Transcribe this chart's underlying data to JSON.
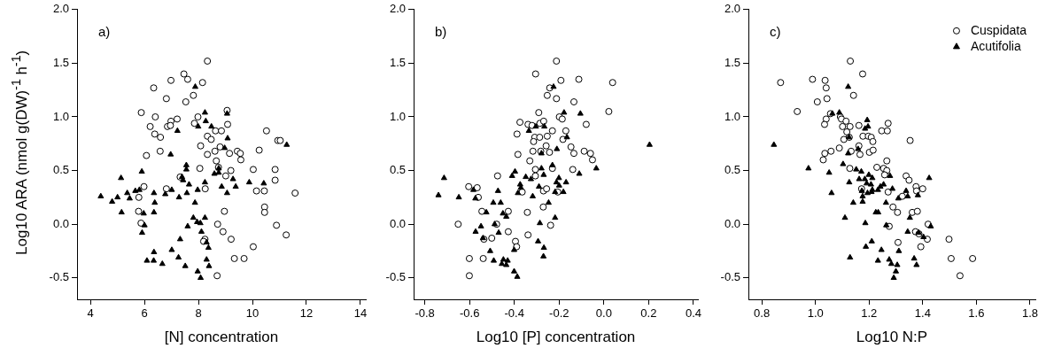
{
  "chart_data": [
    {
      "type": "scatter",
      "annotations": [
        "a)"
      ],
      "xlabel": "[N] concentration",
      "ylabel": "Log10 ARA (nmol g(DW)$^{-1}$ h$^{-1}$)",
      "xlim": [
        3.5,
        14.2
      ],
      "ylim": [
        -0.7,
        2.0
      ],
      "xticks": [
        4,
        6,
        8,
        10,
        12,
        14
      ],
      "yticks": [
        {
          "value": -0.5,
          "label": "-0.5"
        },
        {
          "value": 0,
          "label": "0.0"
        },
        {
          "value": 0.5,
          "label": "0.5"
        },
        {
          "value": 1,
          "label": "1.0"
        },
        {
          "value": 1.5,
          "label": "1.5"
        },
        {
          "value": 2,
          "label": "2.0"
        }
      ],
      "grid": false,
      "legend": false,
      "series": [
        {
          "color": "#000000",
          "marker": "circle",
          "x": [
            8.33,
            7.46,
            7.6,
            6.98,
            6.34,
            8.15,
            6.81,
            7.81,
            7.53,
            5.88,
            6.4,
            9.06,
            7.98,
            6.21,
            6.98,
            7.21,
            6.85,
            6.96,
            7.85,
            6.38,
            6.59,
            9.08,
            8.63,
            8.85,
            8.33,
            8.47,
            10.52,
            8.08,
            6.58,
            6.07,
            8.33,
            8.61,
            8.8,
            9.15,
            9.44,
            9.55,
            9.57,
            10.25,
            10.94,
            11.03,
            8.66,
            8.74,
            8.05,
            9.2,
            9.01,
            10.03,
            10.84,
            10.84,
            7.32,
            5.98,
            6.81,
            8.25,
            5.79,
            10.15,
            10.44,
            11.58,
            10.45,
            10.45,
            5.78,
            8.96,
            5.87,
            8.71,
            8.91,
            10.89,
            11.25,
            9.21,
            8.24,
            8.19,
            10.03,
            9.33,
            9.69,
            8.69
          ],
          "values": [
            1.52,
            1.4,
            1.35,
            1.34,
            1.27,
            1.32,
            1.17,
            1.2,
            1.14,
            1.04,
            1.0,
            1.06,
            1.0,
            0.91,
            0.96,
            0.98,
            0.91,
            0.92,
            0.94,
            0.84,
            0.81,
            0.93,
            0.87,
            0.87,
            0.82,
            0.79,
            0.87,
            0.73,
            0.68,
            0.64,
            0.65,
            0.68,
            0.72,
            0.66,
            0.68,
            0.66,
            0.6,
            0.69,
            0.78,
            0.78,
            0.59,
            0.53,
            0.52,
            0.5,
            0.45,
            0.51,
            0.51,
            0.41,
            0.44,
            0.35,
            0.33,
            0.33,
            0.25,
            0.31,
            0.31,
            0.29,
            0.16,
            0.11,
            0.12,
            0.12,
            0.01,
            0.0,
            -0.07,
            -0.01,
            -0.1,
            -0.14,
            -0.14,
            -0.16,
            -0.21,
            -0.32,
            -0.32,
            -0.48
          ]
        },
        {
          "color": "#000000",
          "marker": "triangle",
          "x": [
            4.38,
            4.8,
            5.0,
            5.13,
            5.15,
            5.36,
            5.45,
            5.66,
            5.81,
            5.9,
            5.97,
            6.0,
            5.91,
            6.35,
            6.38,
            6.35,
            6.35,
            6.09,
            6.34,
            6.66,
            6.77,
            7.01,
            6.97,
            7.22,
            7.28,
            7.01,
            7.26,
            7.32,
            7.51,
            7.39,
            7.43,
            7.55,
            7.55,
            7.57,
            7.65,
            7.6,
            7.81,
            7.87,
            7.88,
            7.97,
            7.99,
            7.95,
            8.07,
            7.97,
            8.08,
            8.11,
            8.24,
            8.27,
            8.24,
            8.24,
            8.3,
            8.37,
            8.3,
            8.39,
            8.48,
            8.59,
            8.75,
            8.75,
            8.86,
            8.97,
            9.08,
            9.06,
            9.06,
            9.28,
            9.38,
            9.88,
            10.42,
            11.27
          ],
          "values": [
            0.26,
            0.21,
            0.25,
            0.43,
            0.11,
            0.29,
            0.24,
            0.31,
            0.32,
            0.49,
            0.1,
            -0.01,
            -0.08,
            0.29,
            0.2,
            0.11,
            -0.26,
            -0.34,
            -0.34,
            -0.37,
            0.28,
            0.32,
            0.65,
            0.87,
            0.25,
            -0.24,
            -0.31,
            -0.14,
            -0.39,
            0.44,
            0.41,
            0.55,
            0.51,
            0.29,
            0.37,
            -0.02,
            0.06,
            0.2,
            1.28,
            0.32,
            0.91,
            0.02,
            0.01,
            -0.44,
            -0.5,
            -0.07,
            1.04,
            0.96,
            0.39,
            0.06,
            -0.17,
            -0.22,
            -0.33,
            -0.39,
            0.91,
            0.47,
            0.52,
            0.48,
            0.35,
            0.71,
            0.8,
            1.03,
            0.29,
            0.42,
            0.35,
            0.39,
            0.38,
            0.74
          ]
        }
      ]
    },
    {
      "type": "scatter",
      "annotations": [
        "b)"
      ],
      "xlabel": "Log10 [P] concentration",
      "xlim": [
        -0.85,
        0.42
      ],
      "ylim": [
        -0.7,
        2.0
      ],
      "xticks": [
        -0.8,
        -0.6,
        -0.4,
        -0.2,
        {
          "value": 0,
          "label": "0.0"
        },
        0.2,
        0.4
      ],
      "yticks": [
        {
          "value": -0.5,
          "label": "-0.5"
        },
        {
          "value": 0,
          "label": "0.0"
        },
        {
          "value": 0.5,
          "label": "0.5"
        },
        {
          "value": 1,
          "label": "1.0"
        },
        {
          "value": 1.5,
          "label": "1.5"
        },
        {
          "value": 2,
          "label": "2.0"
        }
      ],
      "grid": false,
      "legend": false,
      "series": [
        {
          "color": "#000000",
          "marker": "circle",
          "x": [
            -0.212,
            -0.305,
            -0.192,
            -0.112,
            0.039,
            -0.242,
            -0.253,
            -0.212,
            -0.134,
            0.022,
            -0.291,
            -0.199,
            -0.186,
            -0.375,
            -0.339,
            -0.321,
            -0.286,
            -0.269,
            -0.388,
            -0.23,
            -0.17,
            -0.079,
            -0.309,
            -0.287,
            -0.253,
            -0.314,
            -0.183,
            -0.258,
            -0.243,
            -0.317,
            -0.282,
            -0.147,
            -0.134,
            -0.088,
            -0.06,
            -0.051,
            -0.384,
            -0.331,
            -0.23,
            -0.139,
            -0.306,
            -0.306,
            -0.475,
            -0.604,
            -0.566,
            -0.561,
            -0.365,
            -0.27,
            -0.256,
            -0.206,
            -0.545,
            -0.427,
            -0.342,
            -0.271,
            -0.651,
            -0.479,
            -0.238,
            -0.427,
            -0.339,
            -0.536,
            -0.501,
            -0.395,
            -0.39,
            -0.601,
            -0.539,
            -0.601
          ],
          "values": [
            1.52,
            1.4,
            1.34,
            1.35,
            1.32,
            1.27,
            1.2,
            1.17,
            1.14,
            1.05,
            1.04,
            1.0,
            0.98,
            0.95,
            0.93,
            0.92,
            0.94,
            0.96,
            0.84,
            0.87,
            0.87,
            0.93,
            0.81,
            0.81,
            0.82,
            0.77,
            0.79,
            0.73,
            0.67,
            0.68,
            0.68,
            0.72,
            0.66,
            0.68,
            0.66,
            0.6,
            0.65,
            0.59,
            0.52,
            0.51,
            0.51,
            0.45,
            0.45,
            0.35,
            0.34,
            0.25,
            0.3,
            0.31,
            0.33,
            0.3,
            0.12,
            0.12,
            0.11,
            0.16,
            0.0,
            0.0,
            -0.01,
            -0.07,
            -0.1,
            -0.14,
            -0.13,
            -0.16,
            -0.21,
            -0.32,
            -0.32,
            -0.48
          ]
        },
        {
          "color": "#000000",
          "marker": "triangle",
          "x": [
            -0.739,
            -0.714,
            -0.648,
            -0.583,
            -0.574,
            -0.573,
            -0.549,
            -0.54,
            -0.525,
            -0.508,
            -0.492,
            -0.494,
            -0.488,
            -0.473,
            -0.47,
            -0.461,
            -0.456,
            -0.449,
            -0.436,
            -0.43,
            -0.451,
            -0.436,
            -0.401,
            -0.397,
            -0.41,
            -0.401,
            -0.387,
            -0.384,
            -0.374,
            -0.371,
            -0.349,
            -0.335,
            -0.326,
            -0.318,
            -0.304,
            -0.29,
            -0.286,
            -0.294,
            -0.279,
            -0.279,
            -0.269,
            -0.266,
            -0.268,
            -0.27,
            -0.247,
            -0.23,
            -0.218,
            -0.218,
            -0.212,
            -0.21,
            -0.201,
            -0.2,
            -0.181,
            -0.169,
            -0.178,
            -0.165,
            -0.225,
            -0.11,
            -0.105,
            -0.034,
            0.204
          ],
          "values": [
            0.27,
            0.43,
            0.25,
            0.32,
            0.24,
            -0.07,
            -0.02,
            -0.13,
            0.11,
            -0.25,
            -0.34,
            0.2,
            0.0,
            0.31,
            -0.08,
            0.2,
            -0.37,
            -0.33,
            -0.38,
            -0.34,
            0.1,
            0.07,
            -0.24,
            0.49,
            0.45,
            -0.44,
            -0.49,
            0.29,
            0.37,
            0.34,
            0.44,
            0.87,
            0.42,
            0.26,
            0.91,
            0.35,
            0.01,
            -0.16,
            0.66,
            0.52,
            0.46,
            0.91,
            -0.22,
            -0.3,
            0.2,
            0.55,
            0.06,
            0.3,
            0.39,
            0.7,
            0.43,
            0.36,
            0.3,
            0.39,
            1.04,
            0.81,
            1.28,
            0.47,
            1.03,
            0.52,
            0.74
          ]
        }
      ]
    },
    {
      "type": "scatter",
      "annotations": [
        "c)"
      ],
      "xlabel": "Log10 N:P",
      "xlim": [
        0.75,
        1.82
      ],
      "ylim": [
        -0.7,
        2.0
      ],
      "xticks": [
        0.8,
        {
          "value": 1,
          "label": "1.0"
        },
        1.2,
        1.4,
        1.6,
        1.8
      ],
      "yticks": [
        {
          "value": -0.5,
          "label": "-0.5"
        },
        {
          "value": 0,
          "label": "0.0"
        },
        {
          "value": 0.5,
          "label": "0.5"
        },
        {
          "value": 1,
          "label": "1.0"
        },
        {
          "value": 1.5,
          "label": "1.5"
        },
        {
          "value": 2,
          "label": "2.0"
        }
      ],
      "grid": false,
      "legend": "top right",
      "series": [
        {
          "name": "Cuspidata",
          "color": "#000000",
          "marker": "circle",
          "x": [
            1.13,
            1.176,
            1.036,
            0.989,
            0.87,
            1.04,
            1.043,
            1.007,
            1.142,
            0.932,
            1.056,
            1.093,
            1.097,
            1.04,
            1.034,
            1.101,
            1.114,
            1.129,
            1.117,
            1.162,
            1.247,
            1.268,
            1.271,
            1.126,
            1.106,
            1.177,
            1.197,
            1.208,
            1.214,
            1.353,
            1.162,
            1.089,
            1.058,
            1.035,
            1.029,
            1.133,
            1.166,
            1.201,
            1.215,
            1.266,
            1.229,
            1.254,
            1.266,
            1.258,
            1.128,
            1.338,
            1.349,
            1.375,
            1.4,
            1.377,
            1.172,
            1.271,
            1.324,
            1.289,
            1.306,
            1.361,
            1.38,
            1.42,
            1.275,
            1.373,
            1.386,
            1.417,
            1.393,
            1.308,
            1.498,
            1.506,
            1.586,
            1.539
          ],
          "values": [
            1.52,
            1.4,
            1.34,
            1.35,
            1.32,
            1.27,
            1.17,
            1.14,
            1.2,
            1.05,
            1.03,
            1.0,
            0.98,
            0.98,
            0.93,
            0.91,
            0.96,
            0.91,
            0.86,
            0.92,
            0.87,
            0.87,
            0.94,
            0.81,
            0.79,
            0.82,
            0.82,
            0.81,
            0.77,
            0.78,
            0.73,
            0.71,
            0.68,
            0.66,
            0.6,
            0.68,
            0.65,
            0.67,
            0.69,
            0.59,
            0.53,
            0.52,
            0.5,
            0.46,
            0.52,
            0.45,
            0.41,
            0.35,
            0.33,
            0.31,
            0.33,
            0.3,
            0.26,
            0.16,
            0.11,
            0.11,
            0.12,
            0.0,
            -0.02,
            -0.07,
            -0.09,
            -0.14,
            -0.21,
            -0.17,
            -0.14,
            -0.32,
            -0.32,
            -0.48
          ]
        },
        {
          "name": "Acutifolia",
          "color": "#000000",
          "marker": "triangle",
          "x": [
            0.845,
            0.974,
            1.051,
            1.06,
            1.063,
            1.089,
            1.122,
            1.125,
            1.122,
            1.103,
            1.126,
            1.11,
            1.129,
            1.141,
            1.159,
            1.152,
            1.163,
            1.171,
            1.173,
            1.176,
            1.176,
            1.184,
            1.193,
            1.196,
            1.185,
            1.191,
            1.199,
            1.194,
            1.207,
            1.209,
            1.212,
            1.212,
            1.186,
            1.188,
            1.21,
            1.225,
            1.234,
            1.233,
            1.242,
            1.254,
            1.246,
            1.233,
            1.263,
            1.264,
            1.278,
            1.275,
            1.287,
            1.283,
            1.305,
            1.3,
            1.292,
            1.309,
            1.311,
            1.344,
            1.338,
            1.344,
            1.352,
            1.382,
            1.368,
            1.377,
            1.385,
            1.403,
            1.424,
            1.43
          ],
          "values": [
            0.74,
            0.52,
            0.48,
            0.29,
            1.03,
            1.04,
            1.28,
            0.81,
            0.66,
            0.56,
            0.39,
            0.06,
            -0.31,
            0.2,
            0.7,
            0.51,
            0.42,
            0.49,
            0.31,
            0.26,
            0.21,
            0.42,
            0.97,
            0.91,
            0.89,
            0.38,
            0.46,
            0.29,
            0.37,
            0.3,
            0.43,
            0.32,
            0.01,
            -0.21,
            -0.16,
            0.11,
            0.11,
            0.32,
            0.35,
            0.37,
            -0.24,
            -0.34,
            0.2,
            -0.01,
            0.45,
            -0.33,
            0.33,
            -0.37,
            -0.38,
            -0.44,
            -0.5,
            0.24,
            -0.25,
            -0.07,
            0.31,
            0.26,
            0.06,
            0.27,
            -0.32,
            -0.38,
            -0.08,
            -0.12,
            0.43,
            -0.02
          ]
        }
      ]
    }
  ]
}
